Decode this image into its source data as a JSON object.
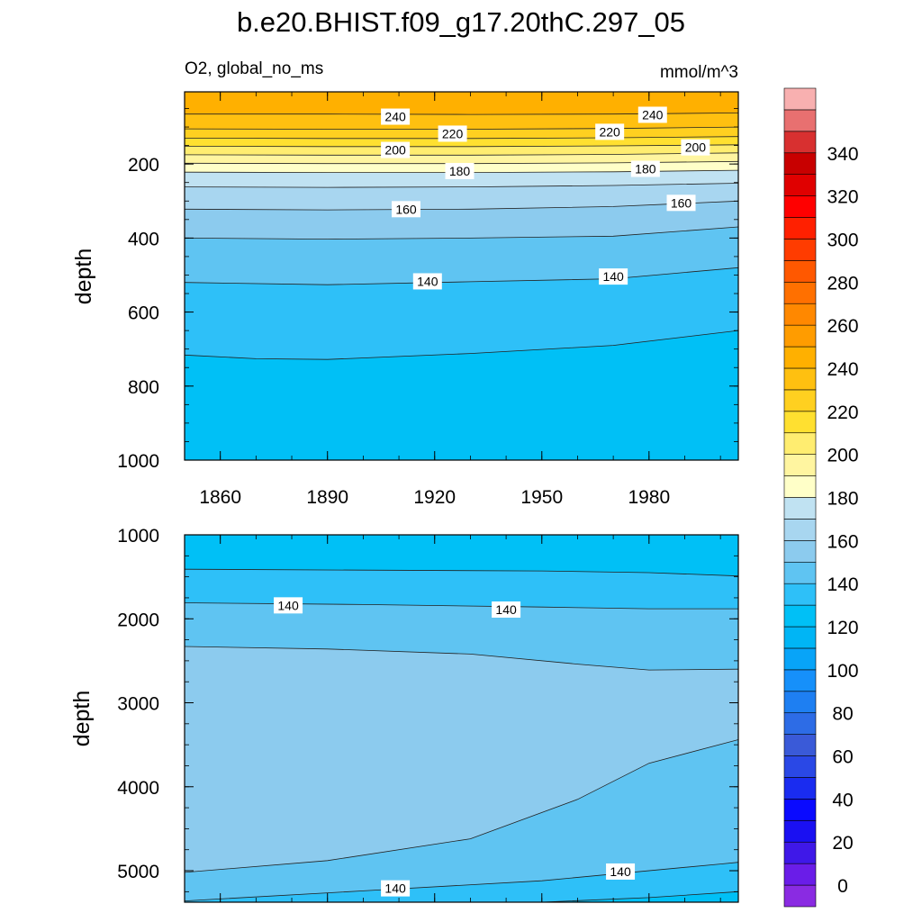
{
  "figure": {
    "title": "b.e20.BHIST.f09_g17.20thC.297_05",
    "variable_label": "O2, global_no_ms",
    "units_label": "mmol/m^3"
  },
  "chart_data": [
    {
      "type": "heatmap",
      "panel": "upper",
      "ylabel": "depth",
      "x_ticks": [
        "1860",
        "1890",
        "1920",
        "1950",
        "1980"
      ],
      "y_ticks": [
        "200",
        "400",
        "600",
        "800",
        "1000"
      ],
      "xlim": [
        1850,
        2005
      ],
      "ylim": [
        1000,
        5
      ],
      "y_inverted": true,
      "grid": false,
      "contour_interval": 10,
      "contour_lines": [
        {
          "level": 240,
          "x": [
            1850,
            1890,
            1930,
            1970,
            2005
          ],
          "depth": [
            65,
            65,
            66,
            65,
            62
          ]
        },
        {
          "level": 230,
          "x": [
            1850,
            1890,
            1930,
            1970,
            2005
          ],
          "depth": [
            105,
            106,
            106,
            104,
            100
          ]
        },
        {
          "level": 220,
          "x": [
            1850,
            1890,
            1930,
            1970,
            2005
          ],
          "depth": [
            130,
            131,
            131,
            129,
            126
          ]
        },
        {
          "level": 210,
          "x": [
            1850,
            1890,
            1930,
            1970,
            2005
          ],
          "depth": [
            152,
            153,
            153,
            151,
            148
          ]
        },
        {
          "level": 200,
          "x": [
            1850,
            1890,
            1930,
            1970,
            2005
          ],
          "depth": [
            175,
            176,
            176,
            174,
            170
          ]
        },
        {
          "level": 190,
          "x": [
            1850,
            1890,
            1930,
            1970,
            2005
          ],
          "depth": [
            198,
            199,
            199,
            197,
            193
          ]
        },
        {
          "level": 180,
          "x": [
            1850,
            1890,
            1930,
            1970,
            2005
          ],
          "depth": [
            222,
            223,
            223,
            221,
            217
          ]
        },
        {
          "level": 170,
          "x": [
            1850,
            1890,
            1930,
            1970,
            2005
          ],
          "depth": [
            262,
            263,
            262,
            258,
            252
          ]
        },
        {
          "level": 160,
          "x": [
            1850,
            1890,
            1930,
            1970,
            2005
          ],
          "depth": [
            322,
            324,
            322,
            315,
            300
          ]
        },
        {
          "level": 150,
          "x": [
            1850,
            1890,
            1930,
            1970,
            2005
          ],
          "depth": [
            400,
            403,
            400,
            395,
            370
          ]
        },
        {
          "level": 140,
          "x": [
            1850,
            1890,
            1930,
            1970,
            2005
          ],
          "depth": [
            520,
            526,
            518,
            510,
            480
          ]
        },
        {
          "level": 130,
          "x": [
            1850,
            1870,
            1890,
            1930,
            1970,
            2005
          ],
          "depth": [
            716,
            726,
            728,
            712,
            690,
            650
          ]
        }
      ],
      "contour_labels": [
        {
          "text": "240",
          "x": 1909,
          "depth": 72
        },
        {
          "text": "240",
          "x": 1981,
          "depth": 67
        },
        {
          "text": "220",
          "x": 1925,
          "depth": 118
        },
        {
          "text": "220",
          "x": 1969,
          "depth": 113
        },
        {
          "text": "200",
          "x": 1909,
          "depth": 162
        },
        {
          "text": "200",
          "x": 1993,
          "depth": 155
        },
        {
          "text": "180",
          "x": 1927,
          "depth": 219
        },
        {
          "text": "180",
          "x": 1979,
          "depth": 213
        },
        {
          "text": "160",
          "x": 1912,
          "depth": 322
        },
        {
          "text": "160",
          "x": 1989,
          "depth": 305
        },
        {
          "text": "140",
          "x": 1918,
          "depth": 517
        },
        {
          "text": "140",
          "x": 1970,
          "depth": 504
        }
      ]
    },
    {
      "type": "heatmap",
      "panel": "lower",
      "ylabel": "depth",
      "y_ticks": [
        "1000",
        "2000",
        "3000",
        "4000",
        "5000"
      ],
      "xlim": [
        1850,
        2005
      ],
      "ylim": [
        5375,
        1000
      ],
      "y_inverted": true,
      "grid": false,
      "contour_interval": 10,
      "contour_lines": [
        {
          "level": 130,
          "x": [
            1850,
            1900,
            1950,
            1980,
            2005
          ],
          "depth": [
            1410,
            1420,
            1430,
            1450,
            1490
          ]
        },
        {
          "level": 140,
          "x": [
            1850,
            1900,
            1950,
            1980,
            2005
          ],
          "depth": [
            1810,
            1830,
            1860,
            1880,
            1880
          ]
        },
        {
          "level": 150,
          "x": [
            1850,
            1890,
            1930,
            1960,
            1980,
            2005
          ],
          "depth": [
            2330,
            2360,
            2420,
            2540,
            2610,
            2600
          ]
        },
        {
          "level": 150,
          "x": [
            1850,
            1890,
            1930,
            1960,
            1980,
            2005
          ],
          "depth": [
            5020,
            4880,
            4620,
            4150,
            3720,
            3440
          ]
        },
        {
          "level": 140,
          "x": [
            1850,
            1900,
            1950,
            2000,
            2005
          ],
          "depth": [
            5360,
            5240,
            5120,
            4920,
            4900
          ]
        },
        {
          "level": 130,
          "x": [
            1950,
            1980,
            2005
          ],
          "depth": [
            5375,
            5320,
            5250
          ]
        }
      ],
      "contour_labels": [
        {
          "text": "140",
          "x": 1879,
          "depth": 1840
        },
        {
          "text": "140",
          "x": 1940,
          "depth": 1890
        },
        {
          "text": "140",
          "x": 1909,
          "depth": 5210
        },
        {
          "text": "140",
          "x": 1972,
          "depth": 5010
        }
      ]
    }
  ],
  "colorbar": {
    "labels": [
      "0",
      "20",
      "40",
      "60",
      "80",
      "100",
      "120",
      "140",
      "160",
      "180",
      "200",
      "220",
      "240",
      "260",
      "280",
      "300",
      "320",
      "340"
    ],
    "levels_start": -10,
    "levels_step": 10,
    "colors": [
      "#8a2be2",
      "#6a1de8",
      "#3f18e8",
      "#1a10f2",
      "#0a0aff",
      "#1a2cf0",
      "#2a48e6",
      "#3a5ad8",
      "#2d6ce6",
      "#1e7ff2",
      "#1690fa",
      "#08a4f8",
      "#00b5f5",
      "#00c0f6",
      "#2ec0f8",
      "#5fc4f2",
      "#8ccbee",
      "#a8d6f0",
      "#c0e2f2",
      "#ffffc8",
      "#fff5a0",
      "#ffed70",
      "#ffe030",
      "#ffd020",
      "#ffc010",
      "#ffb000",
      "#ff9c00",
      "#ff8800",
      "#ff7000",
      "#ff5800",
      "#ff3c00",
      "#ff2000",
      "#ff0000",
      "#e00000",
      "#c80000",
      "#d83030",
      "#e87070",
      "#f8b0b0"
    ]
  }
}
